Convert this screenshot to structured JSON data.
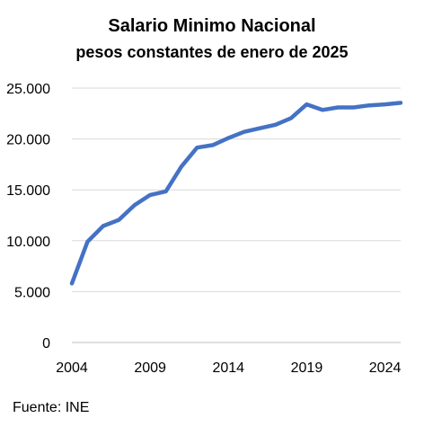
{
  "chart_data": {
    "type": "line",
    "title": "Salario Minimo Nacional",
    "subtitle": "pesos constantes de enero de 2025",
    "xlabel": "",
    "ylabel": "",
    "ylim": [
      0,
      25000
    ],
    "xlim": [
      2004,
      2025
    ],
    "y_ticks": [
      0,
      5000,
      10000,
      15000,
      20000,
      25000
    ],
    "y_tick_labels": [
      "0",
      "5.000",
      "10.000",
      "15.000",
      "20.000",
      "25.000"
    ],
    "x_ticks": [
      2004,
      2009,
      2014,
      2019,
      2024
    ],
    "x_tick_labels": [
      "2004",
      "2009",
      "2014",
      "2019",
      "2024"
    ],
    "grid": true,
    "line_color": "#4472C4",
    "series": [
      {
        "x": [
          2004,
          2005,
          2006,
          2007,
          2008,
          2009,
          2010,
          2011,
          2012,
          2013,
          2014,
          2015,
          2016,
          2017,
          2018,
          2019,
          2020,
          2021,
          2022,
          2023,
          2024,
          2025
        ],
        "values": [
          5800,
          9900,
          11450,
          12050,
          13500,
          14500,
          14850,
          17300,
          19150,
          19400,
          20100,
          20700,
          21050,
          21400,
          22050,
          23400,
          22850,
          23100,
          23100,
          23300,
          23400,
          23550
        ]
      }
    ]
  },
  "source": "Fuente: INE"
}
